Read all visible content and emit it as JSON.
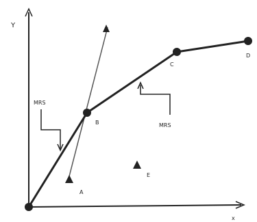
{
  "diagram": {
    "axis_y_label": "Y",
    "axis_x_label": "x",
    "point_B_label": "B",
    "point_C_label": "C",
    "point_D_label": "D",
    "point_A_label": "A",
    "point_E_label": "E",
    "callout_left_label": "MRS",
    "callout_right_label": "MRS"
  }
}
